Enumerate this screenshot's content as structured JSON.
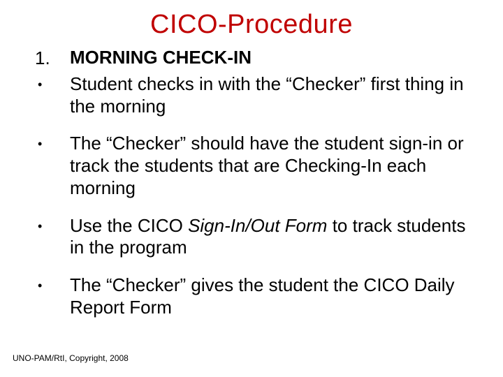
{
  "title": "CICO-Procedure",
  "title_color": "#c00000",
  "body_color": "#000000",
  "background_color": "#ffffff",
  "title_fontsize": 38,
  "body_fontsize": 26,
  "footer_fontsize": 12,
  "items": [
    {
      "marker": "1.",
      "marker_type": "number",
      "text": "MORNING CHECK-IN",
      "bold": true
    },
    {
      "marker": "•",
      "marker_type": "bullet",
      "text": "Student checks in with the “Checker” first thing in the morning"
    },
    {
      "marker": "•",
      "marker_type": "bullet",
      "text": "The “Checker” should have the student sign-in or track the students that are Checking-In each morning",
      "spaced": true
    },
    {
      "marker": "•",
      "marker_type": "bullet",
      "text_pre": "Use the CICO ",
      "text_italic": "Sign-In/Out Form",
      "text_post": " to track students in the program",
      "spaced": true
    },
    {
      "marker": "•",
      "marker_type": "bullet",
      "text": "The “Checker” gives the student the CICO Daily Report Form",
      "spaced": true
    }
  ],
  "footer": "UNO-PAM/RtI, Copyright, 2008"
}
